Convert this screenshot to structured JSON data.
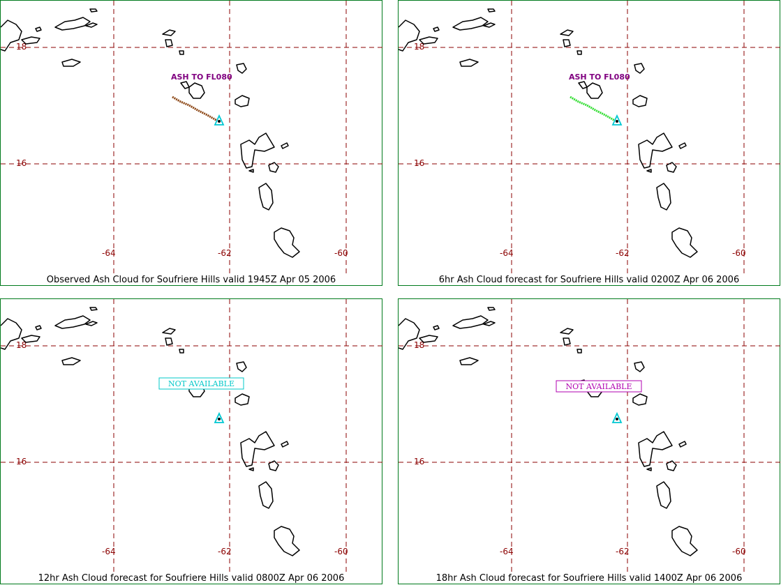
{
  "colors": {
    "frame": "#007a1c",
    "grid": "#8b0000",
    "coast": "#000000",
    "ash_label": "#800080",
    "volcano": "#00c8d2"
  },
  "axis_labels": {
    "lon": [
      "-64",
      "-62",
      "-60"
    ],
    "lat": [
      "18",
      "16"
    ]
  },
  "panels": [
    {
      "caption": "Observed Ash Cloud for Soufriere  Hills valid 1945Z Apr 05 2006",
      "ash_label": "ASH TO FL080",
      "ash_color": "#8b4513",
      "not_available": null
    },
    {
      "caption": "6hr Ash Cloud forecast for Soufriere  Hills valid 0200Z Apr 06 2006",
      "ash_label": "ASH TO FL080",
      "ash_color": "#33dd33",
      "not_available": null
    },
    {
      "caption": "12hr Ash Cloud forecast for Soufriere  Hills valid 0800Z Apr 06 2006",
      "ash_label": null,
      "ash_color": null,
      "not_available": {
        "text": "NOT AVAILABLE",
        "color": "#00c8c8"
      }
    },
    {
      "caption": "18hr Ash Cloud forecast for Soufriere  Hills valid 1400Z Apr 06 2006",
      "ash_label": null,
      "ash_color": null,
      "not_available": {
        "text": "NOT AVAILABLE",
        "color": "#b000b0"
      }
    }
  ]
}
